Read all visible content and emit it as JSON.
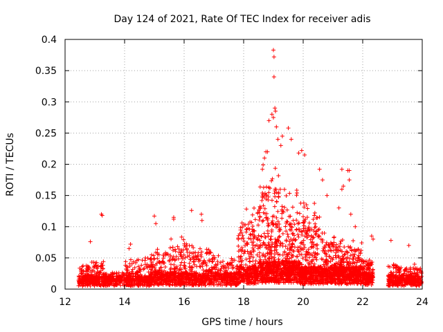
{
  "chart_data": {
    "type": "scatter",
    "title": "Day 124 of 2021, Rate Of TEC Index for receiver adis",
    "xlabel": "GPS time / hours",
    "ylabel": "ROTI / TECUs",
    "xlim": [
      12,
      24
    ],
    "ylim": [
      0,
      0.4
    ],
    "xticks": [
      "12",
      "14",
      "16",
      "18",
      "20",
      "22",
      "24"
    ],
    "yticks": [
      "0",
      "0.05",
      "0.1",
      "0.15",
      "0.2",
      "0.25",
      "0.3",
      "0.35",
      "0.4"
    ],
    "grid": true,
    "marker": "plus",
    "color": "#ff0000",
    "outliers": [
      {
        "x": 13.22,
        "y": 0.12
      },
      {
        "x": 13.25,
        "y": 0.118
      },
      {
        "x": 15.0,
        "y": 0.117
      },
      {
        "x": 15.05,
        "y": 0.105
      },
      {
        "x": 15.65,
        "y": 0.115
      },
      {
        "x": 15.65,
        "y": 0.112
      },
      {
        "x": 16.25,
        "y": 0.126
      },
      {
        "x": 16.58,
        "y": 0.12
      },
      {
        "x": 16.6,
        "y": 0.11
      },
      {
        "x": 19.0,
        "y": 0.383
      },
      {
        "x": 19.02,
        "y": 0.372
      },
      {
        "x": 19.02,
        "y": 0.34
      },
      {
        "x": 19.05,
        "y": 0.29
      },
      {
        "x": 19.07,
        "y": 0.285
      },
      {
        "x": 18.95,
        "y": 0.28
      },
      {
        "x": 19.0,
        "y": 0.275
      },
      {
        "x": 19.1,
        "y": 0.26
      },
      {
        "x": 19.5,
        "y": 0.258
      },
      {
        "x": 18.85,
        "y": 0.27
      },
      {
        "x": 19.3,
        "y": 0.245
      },
      {
        "x": 19.15,
        "y": 0.24
      },
      {
        "x": 19.6,
        "y": 0.24
      },
      {
        "x": 19.25,
        "y": 0.23
      },
      {
        "x": 19.95,
        "y": 0.222
      },
      {
        "x": 20.05,
        "y": 0.215
      },
      {
        "x": 19.85,
        "y": 0.218
      },
      {
        "x": 18.8,
        "y": 0.22
      },
      {
        "x": 18.75,
        "y": 0.22
      },
      {
        "x": 18.7,
        "y": 0.21
      },
      {
        "x": 20.55,
        "y": 0.192
      },
      {
        "x": 21.3,
        "y": 0.192
      },
      {
        "x": 21.5,
        "y": 0.19
      },
      {
        "x": 21.55,
        "y": 0.19
      },
      {
        "x": 21.55,
        "y": 0.175
      },
      {
        "x": 21.35,
        "y": 0.165
      },
      {
        "x": 21.3,
        "y": 0.16
      },
      {
        "x": 20.65,
        "y": 0.175
      },
      {
        "x": 20.8,
        "y": 0.15
      },
      {
        "x": 21.2,
        "y": 0.13
      },
      {
        "x": 21.75,
        "y": 0.1
      },
      {
        "x": 21.6,
        "y": 0.12
      },
      {
        "x": 22.3,
        "y": 0.085
      },
      {
        "x": 22.35,
        "y": 0.08
      },
      {
        "x": 22.95,
        "y": 0.078
      },
      {
        "x": 23.55,
        "y": 0.07
      },
      {
        "x": 12.85,
        "y": 0.076
      },
      {
        "x": 14.2,
        "y": 0.072
      },
      {
        "x": 14.15,
        "y": 0.065
      }
    ],
    "clusters": [
      {
        "x0": 12.45,
        "x1": 13.3,
        "base": 0.012,
        "peak": 0.045,
        "count": 260
      },
      {
        "x0": 13.3,
        "x1": 14.0,
        "base": 0.012,
        "peak": 0.03,
        "count": 180
      },
      {
        "x0": 14.0,
        "x1": 14.85,
        "base": 0.012,
        "peak": 0.05,
        "count": 260
      },
      {
        "x0": 14.85,
        "x1": 15.5,
        "base": 0.015,
        "peak": 0.07,
        "count": 230
      },
      {
        "x0": 15.5,
        "x1": 16.2,
        "base": 0.015,
        "peak": 0.085,
        "count": 260
      },
      {
        "x0": 16.2,
        "x1": 17.0,
        "base": 0.015,
        "peak": 0.07,
        "count": 250
      },
      {
        "x0": 17.0,
        "x1": 17.8,
        "base": 0.015,
        "peak": 0.055,
        "count": 240
      },
      {
        "x0": 17.8,
        "x1": 18.5,
        "base": 0.02,
        "peak": 0.13,
        "count": 330
      },
      {
        "x0": 18.5,
        "x1": 19.2,
        "base": 0.025,
        "peak": 0.2,
        "count": 440
      },
      {
        "x0": 19.2,
        "x1": 19.9,
        "base": 0.025,
        "peak": 0.16,
        "count": 420
      },
      {
        "x0": 19.9,
        "x1": 20.6,
        "base": 0.02,
        "peak": 0.14,
        "count": 380
      },
      {
        "x0": 20.6,
        "x1": 21.3,
        "base": 0.02,
        "peak": 0.09,
        "count": 360
      },
      {
        "x0": 21.3,
        "x1": 22.0,
        "base": 0.02,
        "peak": 0.08,
        "count": 340
      },
      {
        "x0": 22.0,
        "x1": 22.35,
        "base": 0.015,
        "peak": 0.05,
        "count": 160
      },
      {
        "x0": 22.85,
        "x1": 23.5,
        "base": 0.012,
        "peak": 0.045,
        "count": 200
      },
      {
        "x0": 23.5,
        "x1": 24.0,
        "base": 0.012,
        "peak": 0.04,
        "count": 180
      }
    ]
  }
}
